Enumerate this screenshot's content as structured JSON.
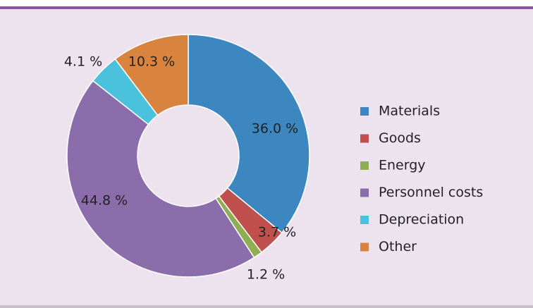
{
  "chart_data": {
    "type": "donut",
    "categories": [
      "Materials",
      "Goods",
      "Energy",
      "Personnel costs",
      "Depreciation",
      "Other"
    ],
    "values": [
      36.0,
      3.7,
      1.2,
      44.8,
      4.1,
      10.3
    ],
    "value_labels": [
      "36.0 %",
      "3.7 %",
      "1.2 %",
      "44.8 %",
      "4.1 %",
      "10.3 %"
    ],
    "colors": [
      "#3d87c0",
      "#c0504d",
      "#8fae53",
      "#8c6dab",
      "#4bc2dc",
      "#d9843e"
    ],
    "legend": "right"
  }
}
